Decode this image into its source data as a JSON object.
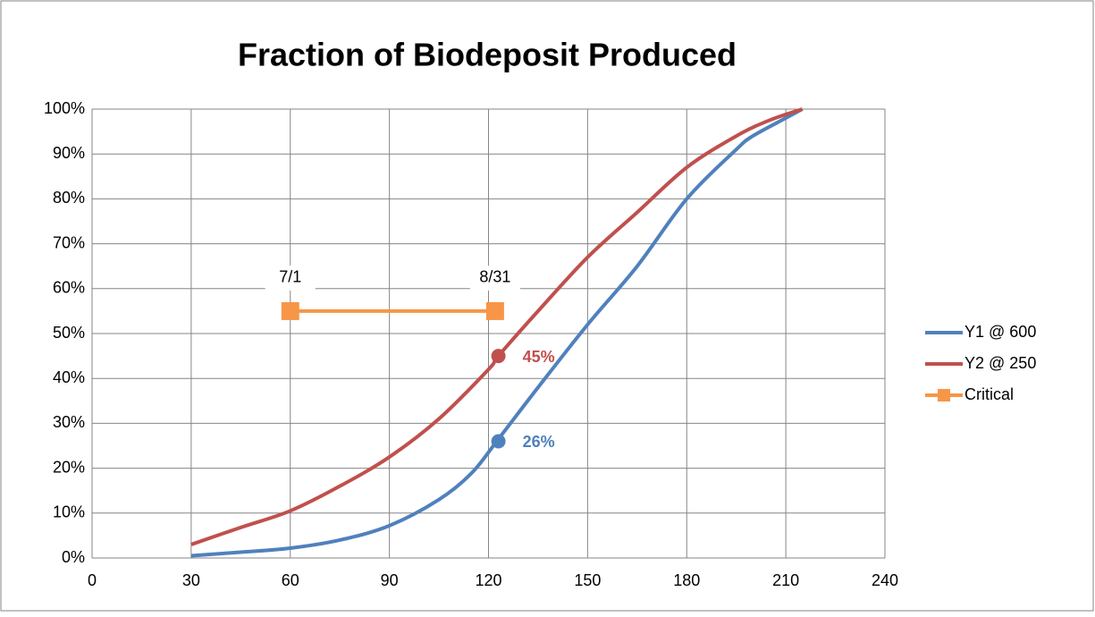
{
  "chart_data": {
    "type": "line",
    "title": "Fraction of Biodeposit Produced",
    "xlim": [
      0,
      240
    ],
    "xticks": [
      0,
      30,
      60,
      90,
      120,
      150,
      180,
      210,
      240
    ],
    "ylim": [
      0,
      100
    ],
    "yticks": [
      {
        "value": 0,
        "label": "0%"
      },
      {
        "value": 10,
        "label": "10%"
      },
      {
        "value": 20,
        "label": "20%"
      },
      {
        "value": 30,
        "label": "30%"
      },
      {
        "value": 40,
        "label": "40%"
      },
      {
        "value": 50,
        "label": "50%"
      },
      {
        "value": 60,
        "label": "60%"
      },
      {
        "value": 70,
        "label": "70%"
      },
      {
        "value": 80,
        "label": "80%"
      },
      {
        "value": 90,
        "label": "90%"
      },
      {
        "value": 100,
        "label": "100%"
      }
    ],
    "grid": true,
    "legend": "right",
    "series": [
      {
        "name": "Y1 @ 600",
        "color": "#4f81bd",
        "x": [
          30,
          45,
          60,
          75,
          90,
          105,
          115,
          123,
          135,
          150,
          165,
          180,
          195,
          200,
          210,
          215
        ],
        "values": [
          0.5,
          1.3,
          2.2,
          4,
          7.2,
          13,
          19,
          26.5,
          38,
          52,
          65,
          80,
          91,
          94,
          98,
          100
        ],
        "highlight": {
          "x": 123,
          "y": 26,
          "label": "26%"
        }
      },
      {
        "name": "Y2 @ 250",
        "color": "#c0504d",
        "x": [
          30,
          45,
          60,
          75,
          90,
          105,
          120,
          123,
          135,
          150,
          165,
          180,
          195,
          205,
          215
        ],
        "values": [
          3,
          6.8,
          10.5,
          16,
          22.5,
          31,
          42,
          45,
          55,
          67,
          77,
          87,
          94,
          97.5,
          100
        ],
        "highlight": {
          "x": 123,
          "y": 45,
          "label": "45%"
        }
      },
      {
        "name": "Critical",
        "color": "#f79646",
        "markers": true,
        "x": [
          60,
          122
        ],
        "values": [
          55,
          55
        ],
        "point_labels": [
          "7/1",
          "8/31"
        ]
      }
    ]
  }
}
